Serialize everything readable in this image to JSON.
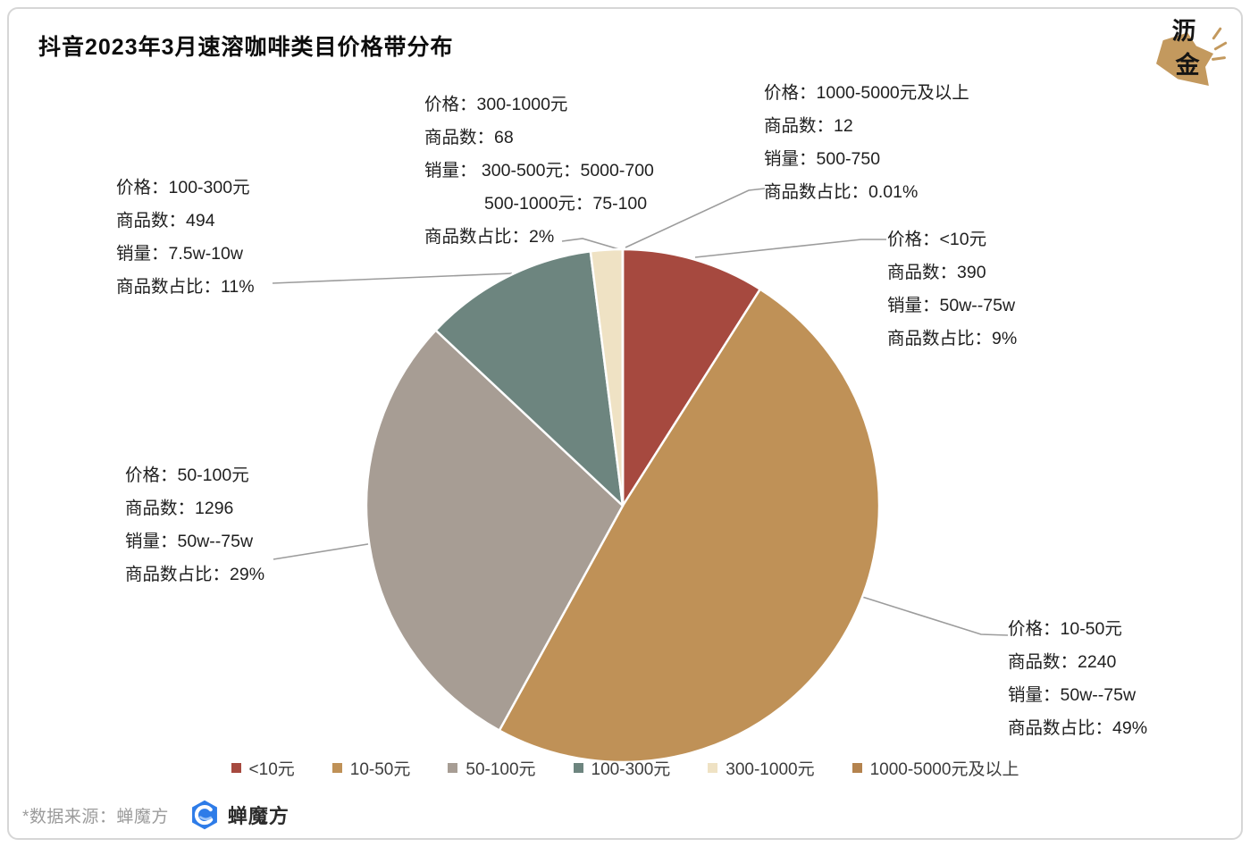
{
  "title": "抖音2023年3月速溶咖啡类目价格带分布",
  "brand": {
    "char1": "沥",
    "char2": "金"
  },
  "chart_data": {
    "type": "pie",
    "title": "抖音2023年3月速溶咖啡类目价格带分布",
    "legend_position": "bottom",
    "start_angle_deg": 0,
    "direction": "clockwise",
    "slices": [
      {
        "label": "<10元",
        "percent": 9,
        "color": "#A6493F",
        "product_count": 390,
        "sales": "50w--75w"
      },
      {
        "label": "10-50元",
        "percent": 49,
        "color": "#BF9157",
        "product_count": 2240,
        "sales": "50w--75w"
      },
      {
        "label": "50-100元",
        "percent": 29,
        "color": "#A79D94",
        "product_count": 1296,
        "sales": "50w--75w"
      },
      {
        "label": "100-300元",
        "percent": 11,
        "color": "#6D857F",
        "product_count": 494,
        "sales": "7.5w-10w"
      },
      {
        "label": "300-1000元",
        "percent": 2,
        "color": "#EFE2C4",
        "product_count": 68,
        "sales": "300-500元：5000-700；500-1000元：75-100"
      },
      {
        "label": "1000-5000元及以上",
        "percent": 0.01,
        "color": "#B4834E",
        "product_count": 12,
        "sales": "500-750"
      }
    ]
  },
  "callouts": {
    "p100_300": {
      "lines": [
        "价格：100-300元",
        "商品数：494",
        "销量：7.5w-10w",
        "商品数占比：11%"
      ]
    },
    "p300_1000": {
      "lines": [
        "价格：300-1000元",
        "商品数：68",
        "销量： 300-500元：5000-700",
        "500-1000元：75-100",
        "商品数占比：2%"
      ]
    },
    "p1000_5000": {
      "lines": [
        "价格：1000-5000元及以上",
        "商品数：12",
        "销量：500-750",
        "商品数占比：0.01%"
      ]
    },
    "p_lt10": {
      "lines": [
        "价格：<10元",
        "商品数：390",
        "销量：50w--75w",
        "商品数占比：9%"
      ]
    },
    "p50_100": {
      "lines": [
        "价格：50-100元",
        "商品数：1296",
        "销量：50w--75w",
        "商品数占比：29%"
      ]
    },
    "p10_50": {
      "lines": [
        "价格：10-50元",
        "商品数：2240",
        "销量：50w--75w",
        "商品数占比：49%"
      ]
    }
  },
  "footer": {
    "source_note": "*数据来源：蝉魔方",
    "logo_name": "蝉魔方"
  },
  "colors": {
    "leader_line": "#9c9c9c",
    "pie_stroke": "#ffffff",
    "cmf_blue": "#2E7CE8"
  }
}
